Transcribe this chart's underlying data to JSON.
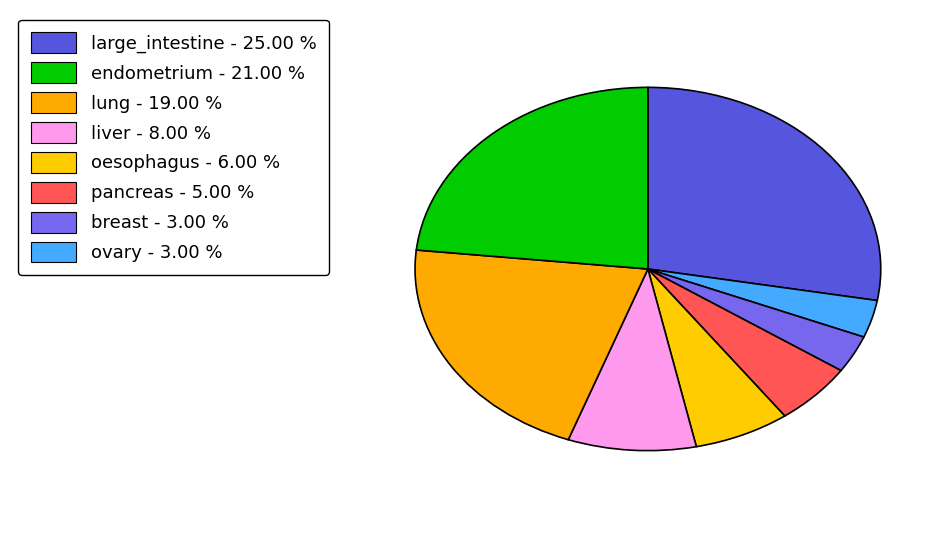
{
  "labels": [
    "large_intestine",
    "ovary",
    "breast",
    "pancreas",
    "oesophagus",
    "liver",
    "lung",
    "endometrium"
  ],
  "values": [
    25.0,
    3.0,
    3.0,
    5.0,
    6.0,
    8.0,
    19.0,
    21.0
  ],
  "colors": [
    "#5555dd",
    "#44aaff",
    "#7766ee",
    "#ff5555",
    "#ffcc00",
    "#ff99ee",
    "#ffaa00",
    "#00cc00"
  ],
  "legend_labels": [
    "large_intestine - 25.00 %",
    "endometrium - 21.00 %",
    "lung - 19.00 %",
    "liver - 8.00 %",
    "oesophagus - 6.00 %",
    "pancreas - 5.00 %",
    "breast - 3.00 %",
    "ovary - 3.00 %"
  ],
  "legend_colors": [
    "#5555dd",
    "#00cc00",
    "#ffaa00",
    "#ff99ee",
    "#ffcc00",
    "#ff5555",
    "#7766ee",
    "#44aaff"
  ],
  "background_color": "#ffffff",
  "startangle": 90,
  "figsize": [
    9.39,
    5.38
  ],
  "dpi": 100
}
